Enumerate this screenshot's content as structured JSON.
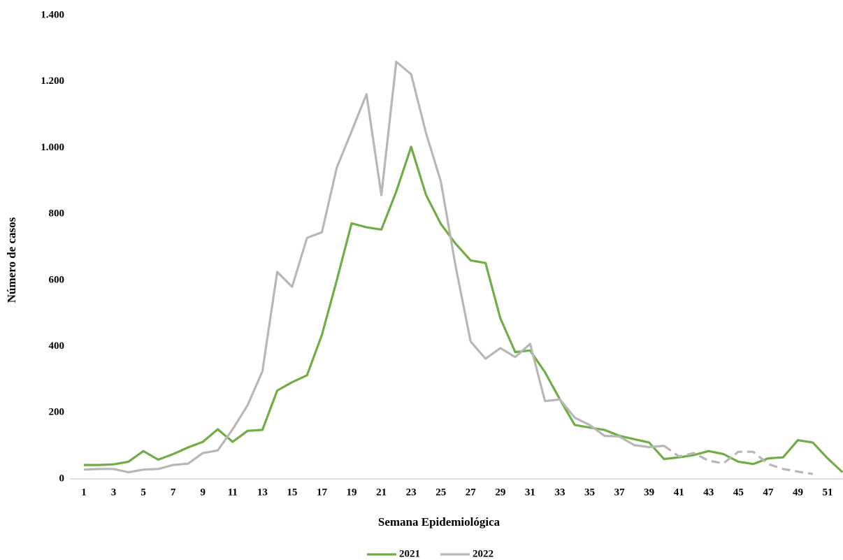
{
  "chart_data": {
    "type": "line",
    "x_label": "Semana Epidemiológica",
    "y_label": "Número de casos",
    "categories": [
      "1",
      null,
      "3",
      null,
      "5",
      null,
      "7",
      null,
      "9",
      null,
      "11",
      null,
      "13",
      null,
      "15",
      null,
      "17",
      null,
      "19",
      null,
      "21",
      null,
      "23",
      null,
      "25",
      null,
      "27",
      null,
      "29",
      null,
      "31",
      null,
      "33",
      null,
      "35",
      null,
      "37",
      null,
      "39",
      null,
      "41",
      null,
      "43",
      null,
      "45",
      null,
      "47",
      null,
      "49",
      null,
      "51",
      null
    ],
    "series": [
      {
        "name": "2021",
        "color": "#70ad47",
        "values": [
          42,
          42,
          44,
          52,
          84,
          58,
          75,
          95,
          112,
          150,
          112,
          145,
          148,
          267,
          292,
          313,
          435,
          600,
          772,
          760,
          753,
          868,
          1003,
          858,
          770,
          710,
          660,
          652,
          485,
          383,
          388,
          322,
          240,
          163,
          155,
          148,
          130,
          120,
          110,
          60,
          65,
          72,
          84,
          75,
          52,
          45,
          62,
          65,
          117,
          110,
          62,
          20
        ]
      },
      {
        "name": "2022",
        "color": "#b7b7b7",
        "dash_from": 40,
        "values": [
          28,
          30,
          30,
          20,
          28,
          30,
          42,
          46,
          78,
          86,
          150,
          222,
          325,
          625,
          580,
          728,
          745,
          940,
          1050,
          1162,
          857,
          1260,
          1222,
          1045,
          898,
          640,
          415,
          363,
          395,
          368,
          408,
          235,
          240,
          185,
          163,
          130,
          128,
          102,
          96,
          100,
          68,
          78,
          55,
          47,
          82,
          82,
          45,
          30,
          22,
          15,
          null,
          null
        ]
      }
    ],
    "ylim": [
      0,
      1400
    ],
    "yticks": [
      0,
      200,
      400,
      600,
      800,
      {
        "value": 1000,
        "label": "1.000"
      },
      {
        "value": 1200,
        "label": "1.200"
      },
      {
        "value": 1400,
        "label": "1.400"
      }
    ],
    "grid": false,
    "legend": "bottom"
  }
}
